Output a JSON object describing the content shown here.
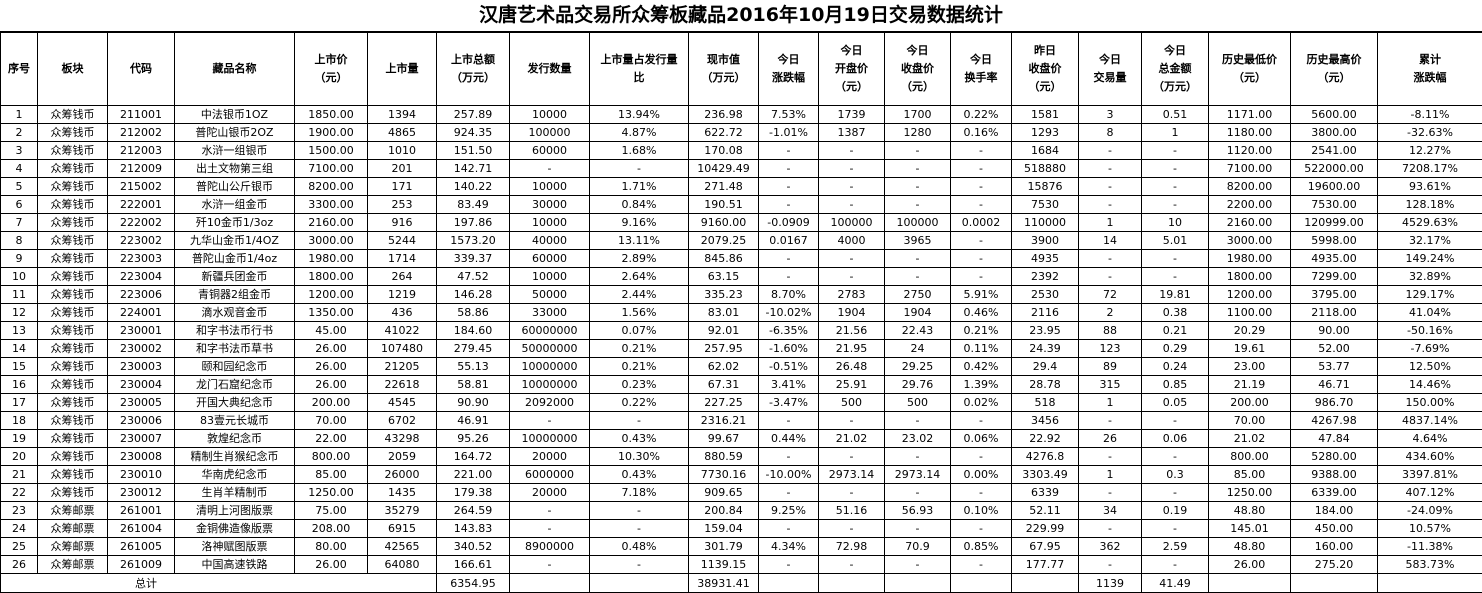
{
  "title": "汉唐艺术品交易所众筹板藏品2016年10月19日交易数据统计",
  "headers": [
    "序号",
    "板块",
    "代码",
    "藏品名称",
    "上市价\n（元）",
    "上市量",
    "上市总额\n（万元）",
    "发行数量",
    "上市量占发行量\n比",
    "现市值\n（万元）",
    "今日\n涨跌幅",
    "今日\n开盘价\n（元）",
    "今日\n收盘价\n（元）",
    "今日\n换手率",
    "昨日\n收盘价\n（元）",
    "今日\n交易量",
    "今日\n总金额\n（万元）",
    "历史最低价\n（元）",
    "历史最高价\n（元）",
    "累计\n涨跌幅"
  ],
  "rows": [
    [
      "1",
      "众筹钱币",
      "211001",
      "中法银币1OZ",
      "1850.00",
      "1394",
      "257.89",
      "10000",
      "13.94%",
      "236.98",
      "7.53%",
      "1739",
      "1700",
      "0.22%",
      "1581",
      "3",
      "0.51",
      "1171.00",
      "5600.00",
      "-8.11%"
    ],
    [
      "2",
      "众筹钱币",
      "212002",
      "普陀山银币2OZ",
      "1900.00",
      "4865",
      "924.35",
      "100000",
      "4.87%",
      "622.72",
      "-1.01%",
      "1387",
      "1280",
      "0.16%",
      "1293",
      "8",
      "1",
      "1180.00",
      "3800.00",
      "-32.63%"
    ],
    [
      "3",
      "众筹钱币",
      "212003",
      "水浒一组银币",
      "1500.00",
      "1010",
      "151.50",
      "60000",
      "1.68%",
      "170.08",
      "-",
      "-",
      "-",
      "-",
      "1684",
      "-",
      "-",
      "1120.00",
      "2541.00",
      "12.27%"
    ],
    [
      "4",
      "众筹钱币",
      "212009",
      "出土文物第三组",
      "7100.00",
      "201",
      "142.71",
      "-",
      "-",
      "10429.49",
      "-",
      "-",
      "-",
      "-",
      "518880",
      "-",
      "-",
      "7100.00",
      "522000.00",
      "7208.17%"
    ],
    [
      "5",
      "众筹钱币",
      "215002",
      "普陀山公斤银币",
      "8200.00",
      "171",
      "140.22",
      "10000",
      "1.71%",
      "271.48",
      "-",
      "-",
      "-",
      "-",
      "15876",
      "-",
      "-",
      "8200.00",
      "19600.00",
      "93.61%"
    ],
    [
      "6",
      "众筹钱币",
      "222001",
      "水浒一组金币",
      "3300.00",
      "253",
      "83.49",
      "30000",
      "0.84%",
      "190.51",
      "-",
      "-",
      "-",
      "-",
      "7530",
      "-",
      "-",
      "2200.00",
      "7530.00",
      "128.18%"
    ],
    [
      "7",
      "众筹钱币",
      "222002",
      "歼10金币1/3oz",
      "2160.00",
      "916",
      "197.86",
      "10000",
      "9.16%",
      "9160.00",
      "-0.0909",
      "100000",
      "100000",
      "0.0002",
      "110000",
      "1",
      "10",
      "2160.00",
      "120999.00",
      "4529.63%"
    ],
    [
      "8",
      "众筹钱币",
      "223002",
      "九华山金币1/4OZ",
      "3000.00",
      "5244",
      "1573.20",
      "40000",
      "13.11%",
      "2079.25",
      "0.0167",
      "4000",
      "3965",
      "-",
      "3900",
      "14",
      "5.01",
      "3000.00",
      "5998.00",
      "32.17%"
    ],
    [
      "9",
      "众筹钱币",
      "223003",
      "普陀山金币1/4oz",
      "1980.00",
      "1714",
      "339.37",
      "60000",
      "2.89%",
      "845.86",
      "-",
      "-",
      "-",
      "-",
      "4935",
      "-",
      "-",
      "1980.00",
      "4935.00",
      "149.24%"
    ],
    [
      "10",
      "众筹钱币",
      "223004",
      "新疆兵团金币",
      "1800.00",
      "264",
      "47.52",
      "10000",
      "2.64%",
      "63.15",
      "-",
      "-",
      "-",
      "-",
      "2392",
      "-",
      "-",
      "1800.00",
      "7299.00",
      "32.89%"
    ],
    [
      "11",
      "众筹钱币",
      "223006",
      "青铜器2组金币",
      "1200.00",
      "1219",
      "146.28",
      "50000",
      "2.44%",
      "335.23",
      "8.70%",
      "2783",
      "2750",
      "5.91%",
      "2530",
      "72",
      "19.81",
      "1200.00",
      "3795.00",
      "129.17%"
    ],
    [
      "12",
      "众筹钱币",
      "224001",
      "滴水观音金币",
      "1350.00",
      "436",
      "58.86",
      "33000",
      "1.56%",
      "83.01",
      "-10.02%",
      "1904",
      "1904",
      "0.46%",
      "2116",
      "2",
      "0.38",
      "1100.00",
      "2118.00",
      "41.04%"
    ],
    [
      "13",
      "众筹钱币",
      "230001",
      "和字书法币行书",
      "45.00",
      "41022",
      "184.60",
      "60000000",
      "0.07%",
      "92.01",
      "-6.35%",
      "21.56",
      "22.43",
      "0.21%",
      "23.95",
      "88",
      "0.21",
      "20.29",
      "90.00",
      "-50.16%"
    ],
    [
      "14",
      "众筹钱币",
      "230002",
      "和字书法币草书",
      "26.00",
      "107480",
      "279.45",
      "50000000",
      "0.21%",
      "257.95",
      "-1.60%",
      "21.95",
      "24",
      "0.11%",
      "24.39",
      "123",
      "0.29",
      "19.61",
      "52.00",
      "-7.69%"
    ],
    [
      "15",
      "众筹钱币",
      "230003",
      "颐和园纪念币",
      "26.00",
      "21205",
      "55.13",
      "10000000",
      "0.21%",
      "62.02",
      "-0.51%",
      "26.48",
      "29.25",
      "0.42%",
      "29.4",
      "89",
      "0.24",
      "23.00",
      "53.77",
      "12.50%"
    ],
    [
      "16",
      "众筹钱币",
      "230004",
      "龙门石窟纪念币",
      "26.00",
      "22618",
      "58.81",
      "10000000",
      "0.23%",
      "67.31",
      "3.41%",
      "25.91",
      "29.76",
      "1.39%",
      "28.78",
      "315",
      "0.85",
      "21.19",
      "46.71",
      "14.46%"
    ],
    [
      "17",
      "众筹钱币",
      "230005",
      "开国大典纪念币",
      "200.00",
      "4545",
      "90.90",
      "2092000",
      "0.22%",
      "227.25",
      "-3.47%",
      "500",
      "500",
      "0.02%",
      "518",
      "1",
      "0.05",
      "200.00",
      "986.70",
      "150.00%"
    ],
    [
      "18",
      "众筹钱币",
      "230006",
      "83壹元长城币",
      "70.00",
      "6702",
      "46.91",
      "-",
      "-",
      "2316.21",
      "-",
      "-",
      "-",
      "-",
      "3456",
      "-",
      "-",
      "70.00",
      "4267.98",
      "4837.14%"
    ],
    [
      "19",
      "众筹钱币",
      "230007",
      "敦煌纪念币",
      "22.00",
      "43298",
      "95.26",
      "10000000",
      "0.43%",
      "99.67",
      "0.44%",
      "21.02",
      "23.02",
      "0.06%",
      "22.92",
      "26",
      "0.06",
      "21.02",
      "47.84",
      "4.64%"
    ],
    [
      "20",
      "众筹钱币",
      "230008",
      "精制生肖猴纪念币",
      "800.00",
      "2059",
      "164.72",
      "20000",
      "10.30%",
      "880.59",
      "-",
      "-",
      "-",
      "-",
      "4276.8",
      "-",
      "-",
      "800.00",
      "5280.00",
      "434.60%"
    ],
    [
      "21",
      "众筹钱币",
      "230010",
      "华南虎纪念币",
      "85.00",
      "26000",
      "221.00",
      "6000000",
      "0.43%",
      "7730.16",
      "-10.00%",
      "2973.14",
      "2973.14",
      "0.00%",
      "3303.49",
      "1",
      "0.3",
      "85.00",
      "9388.00",
      "3397.81%"
    ],
    [
      "22",
      "众筹钱币",
      "230012",
      "生肖羊精制币",
      "1250.00",
      "1435",
      "179.38",
      "20000",
      "7.18%",
      "909.65",
      "-",
      "-",
      "-",
      "-",
      "6339",
      "-",
      "-",
      "1250.00",
      "6339.00",
      "407.12%"
    ],
    [
      "23",
      "众筹邮票",
      "261001",
      "清明上河图版票",
      "75.00",
      "35279",
      "264.59",
      "-",
      "-",
      "200.84",
      "9.25%",
      "51.16",
      "56.93",
      "0.10%",
      "52.11",
      "34",
      "0.19",
      "48.80",
      "184.00",
      "-24.09%"
    ],
    [
      "24",
      "众筹邮票",
      "261004",
      "金铜佛造像版票",
      "208.00",
      "6915",
      "143.83",
      "-",
      "-",
      "159.04",
      "-",
      "-",
      "-",
      "-",
      "229.99",
      "-",
      "-",
      "145.01",
      "450.00",
      "10.57%"
    ],
    [
      "25",
      "众筹邮票",
      "261005",
      "洛神赋图版票",
      "80.00",
      "42565",
      "340.52",
      "8900000",
      "0.48%",
      "301.79",
      "4.34%",
      "72.98",
      "70.9",
      "0.85%",
      "67.95",
      "362",
      "2.59",
      "48.80",
      "160.00",
      "-11.38%"
    ],
    [
      "26",
      "众筹邮票",
      "261009",
      "中国高速铁路",
      "26.00",
      "64080",
      "166.61",
      "-",
      "-",
      "1139.15",
      "-",
      "-",
      "-",
      "-",
      "177.77",
      "-",
      "-",
      "26.00",
      "275.20",
      "583.73%"
    ]
  ],
  "total": {
    "label": "总计",
    "listing_total": "6354.95",
    "market_value": "38931.41",
    "volume": "1139",
    "amount": "41.49"
  }
}
